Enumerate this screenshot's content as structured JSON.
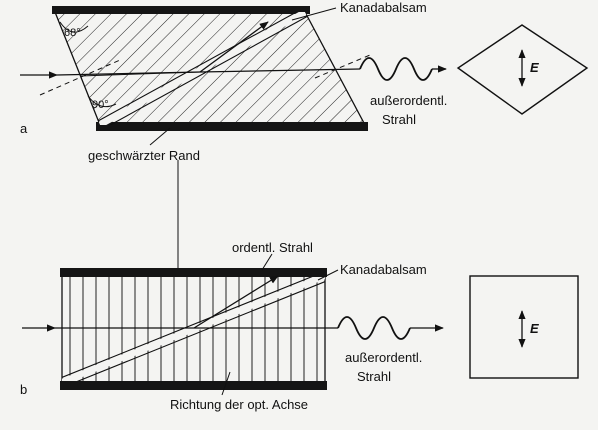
{
  "diagram_a": {
    "part_label": "a",
    "angle_top": "68°",
    "angle_bottom": "90°",
    "balsam_label": "Kanadabalsam",
    "extra_ray_label_1": "außerordentl.",
    "extra_ray_label_2": "Strahl",
    "edge_label": "geschwärzter Rand",
    "field_label": "E"
  },
  "diagram_b": {
    "part_label": "b",
    "ordinary_ray_label": "ordentl. Strahl",
    "balsam_label": "Kanadabalsam",
    "extra_ray_label_1": "außerordentl.",
    "extra_ray_label_2": "Strahl",
    "axis_label": "Richtung der opt. Achse",
    "field_label": "E"
  }
}
